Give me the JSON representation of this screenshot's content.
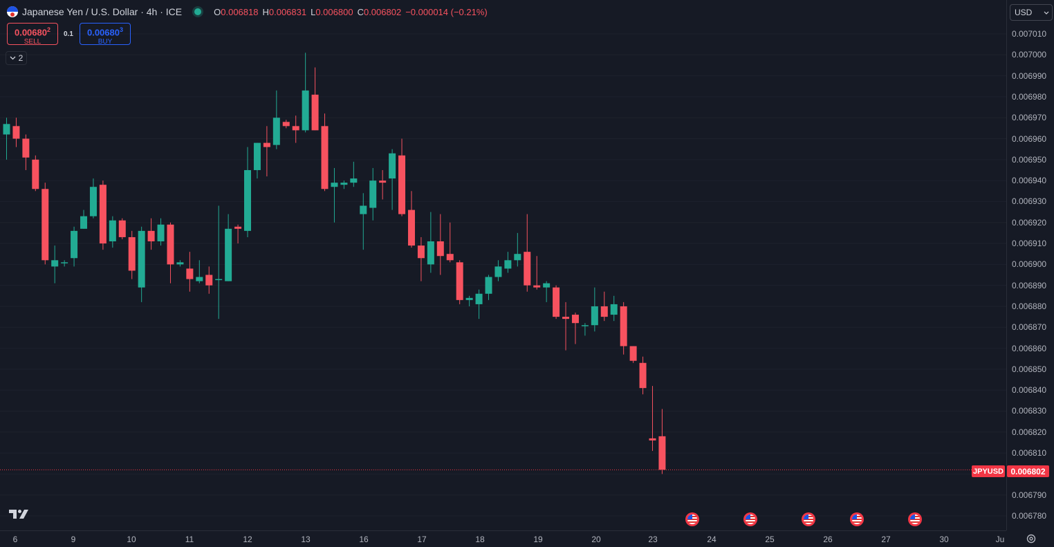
{
  "header": {
    "title": "Japanese Yen / U.S. Dollar · 4h · ICE",
    "ohlc": [
      {
        "key": "O",
        "value": "0.006818"
      },
      {
        "key": "H",
        "value": "0.006831"
      },
      {
        "key": "L",
        "value": "0.006800"
      },
      {
        "key": "C",
        "value": "0.006802"
      },
      {
        "key": "",
        "value": "−0.000014 (−0.21%)"
      }
    ]
  },
  "trade": {
    "sell_price": "0.00680",
    "sell_price_sup": "2",
    "sell_label": "SELL",
    "spread": "0.1",
    "buy_price": "0.00680",
    "buy_price_sup": "3",
    "buy_label": "BUY"
  },
  "indicators_toggle": {
    "count": "2"
  },
  "currency": {
    "selected": "USD"
  },
  "last_price": {
    "symbol": "JPYUSD",
    "value": "0.006802"
  },
  "icons": {
    "symbol_flag": "japan-us-flag-icon",
    "live_status": "market-open-dot-icon",
    "chevron": "chevron-down-icon",
    "logo": "tradingview-logo-icon",
    "events": "us-economic-event-icon",
    "settings": "settings-gear-icon"
  },
  "colors": {
    "up": "#22ab94",
    "down": "#f7525f",
    "background": "#161a25",
    "grid": "#1e222d"
  },
  "chart_data": {
    "type": "candlestick",
    "title": "Japanese Yen / U.S. Dollar · 4h · ICE",
    "ylim": [
      0.006775,
      0.007015
    ],
    "y_ticks": [
      "0.006780",
      "0.006790",
      "0.006800",
      "0.006810",
      "0.006820",
      "0.006830",
      "0.006840",
      "0.006850",
      "0.006860",
      "0.006870",
      "0.006880",
      "0.006890",
      "0.006900",
      "0.006910",
      "0.006920",
      "0.006930",
      "0.006940",
      "0.006950",
      "0.006960",
      "0.006970",
      "0.006980",
      "0.006990",
      "0.007000",
      "0.007010"
    ],
    "x_ticks": [
      "6",
      "9",
      "10",
      "11",
      "12",
      "13",
      "16",
      "17",
      "18",
      "19",
      "20",
      "23",
      "24",
      "25",
      "26",
      "27",
      "30",
      "Ju"
    ],
    "event_dates": [
      "24",
      "25",
      "26",
      "27",
      "30"
    ],
    "candles": [
      {
        "o": 0.006962,
        "h": 0.00697,
        "l": 0.00695,
        "c": 0.006967
      },
      {
        "o": 0.006966,
        "h": 0.00697,
        "l": 0.006956,
        "c": 0.00696
      },
      {
        "o": 0.00696,
        "h": 0.006962,
        "l": 0.006945,
        "c": 0.006951
      },
      {
        "o": 0.00695,
        "h": 0.006952,
        "l": 0.006935,
        "c": 0.006936
      },
      {
        "o": 0.006936,
        "h": 0.006939,
        "l": 0.0069,
        "c": 0.006902
      },
      {
        "o": 0.006899,
        "h": 0.006909,
        "l": 0.006891,
        "c": 0.006902
      },
      {
        "o": 0.006901,
        "h": 0.006902,
        "l": 0.006899,
        "c": 0.006901
      },
      {
        "o": 0.006903,
        "h": 0.006918,
        "l": 0.006899,
        "c": 0.006916
      },
      {
        "o": 0.006917,
        "h": 0.006926,
        "l": 0.006917,
        "c": 0.006923
      },
      {
        "o": 0.006923,
        "h": 0.006941,
        "l": 0.006922,
        "c": 0.006937
      },
      {
        "o": 0.006938,
        "h": 0.00694,
        "l": 0.006907,
        "c": 0.00691
      },
      {
        "o": 0.006911,
        "h": 0.006923,
        "l": 0.006908,
        "c": 0.006921
      },
      {
        "o": 0.006921,
        "h": 0.006922,
        "l": 0.006912,
        "c": 0.006913
      },
      {
        "o": 0.006913,
        "h": 0.006916,
        "l": 0.006893,
        "c": 0.006897
      },
      {
        "o": 0.006889,
        "h": 0.006918,
        "l": 0.006882,
        "c": 0.006916
      },
      {
        "o": 0.006916,
        "h": 0.006922,
        "l": 0.006907,
        "c": 0.006911
      },
      {
        "o": 0.006911,
        "h": 0.006922,
        "l": 0.006909,
        "c": 0.006919
      },
      {
        "o": 0.006919,
        "h": 0.00692,
        "l": 0.006891,
        "c": 0.0069
      },
      {
        "o": 0.0069,
        "h": 0.006902,
        "l": 0.006899,
        "c": 0.006901
      },
      {
        "o": 0.006898,
        "h": 0.006906,
        "l": 0.006887,
        "c": 0.006893
      },
      {
        "o": 0.006892,
        "h": 0.006902,
        "l": 0.006891,
        "c": 0.006894
      },
      {
        "o": 0.006895,
        "h": 0.006899,
        "l": 0.006886,
        "c": 0.00689
      },
      {
        "o": 0.006893,
        "h": 0.006928,
        "l": 0.006874,
        "c": 0.006893
      },
      {
        "o": 0.006892,
        "h": 0.006924,
        "l": 0.006892,
        "c": 0.006917
      },
      {
        "o": 0.006918,
        "h": 0.006919,
        "l": 0.00691,
        "c": 0.006917
      },
      {
        "o": 0.006916,
        "h": 0.006956,
        "l": 0.006913,
        "c": 0.006945
      },
      {
        "o": 0.006945,
        "h": 0.006958,
        "l": 0.006941,
        "c": 0.006958
      },
      {
        "o": 0.006958,
        "h": 0.006966,
        "l": 0.006942,
        "c": 0.006956
      },
      {
        "o": 0.006957,
        "h": 0.006983,
        "l": 0.006955,
        "c": 0.00697
      },
      {
        "o": 0.006968,
        "h": 0.006969,
        "l": 0.006965,
        "c": 0.006966
      },
      {
        "o": 0.006966,
        "h": 0.006971,
        "l": 0.006958,
        "c": 0.006964
      },
      {
        "o": 0.006964,
        "h": 0.007001,
        "l": 0.006963,
        "c": 0.006983
      },
      {
        "o": 0.006981,
        "h": 0.006994,
        "l": 0.006964,
        "c": 0.006964
      },
      {
        "o": 0.006966,
        "h": 0.006972,
        "l": 0.006935,
        "c": 0.006936
      },
      {
        "o": 0.006937,
        "h": 0.006946,
        "l": 0.00692,
        "c": 0.006939
      },
      {
        "o": 0.006938,
        "h": 0.00694,
        "l": 0.006936,
        "c": 0.006939
      },
      {
        "o": 0.006939,
        "h": 0.006949,
        "l": 0.006937,
        "c": 0.006941
      },
      {
        "o": 0.006924,
        "h": 0.006934,
        "l": 0.006907,
        "c": 0.006928
      },
      {
        "o": 0.006927,
        "h": 0.006946,
        "l": 0.006921,
        "c": 0.00694
      },
      {
        "o": 0.00694,
        "h": 0.006945,
        "l": 0.006931,
        "c": 0.006939
      },
      {
        "o": 0.006941,
        "h": 0.006955,
        "l": 0.006926,
        "c": 0.006953
      },
      {
        "o": 0.006952,
        "h": 0.00696,
        "l": 0.006923,
        "c": 0.006924
      },
      {
        "o": 0.006926,
        "h": 0.006935,
        "l": 0.006908,
        "c": 0.006909
      },
      {
        "o": 0.006909,
        "h": 0.006913,
        "l": 0.006892,
        "c": 0.006903
      },
      {
        "o": 0.0069,
        "h": 0.006925,
        "l": 0.006896,
        "c": 0.006911
      },
      {
        "o": 0.006911,
        "h": 0.006924,
        "l": 0.006895,
        "c": 0.006904
      },
      {
        "o": 0.006905,
        "h": 0.00692,
        "l": 0.006901,
        "c": 0.006902
      },
      {
        "o": 0.006901,
        "h": 0.006902,
        "l": 0.006881,
        "c": 0.006883
      },
      {
        "o": 0.006883,
        "h": 0.006885,
        "l": 0.00688,
        "c": 0.006884
      },
      {
        "o": 0.006881,
        "h": 0.006888,
        "l": 0.006874,
        "c": 0.006886
      },
      {
        "o": 0.006886,
        "h": 0.006895,
        "l": 0.006883,
        "c": 0.006894
      },
      {
        "o": 0.006894,
        "h": 0.006902,
        "l": 0.006892,
        "c": 0.006899
      },
      {
        "o": 0.006898,
        "h": 0.006906,
        "l": 0.006896,
        "c": 0.006902
      },
      {
        "o": 0.006902,
        "h": 0.006915,
        "l": 0.006899,
        "c": 0.006905
      },
      {
        "o": 0.006906,
        "h": 0.006924,
        "l": 0.006887,
        "c": 0.00689
      },
      {
        "o": 0.00689,
        "h": 0.006904,
        "l": 0.006888,
        "c": 0.006889
      },
      {
        "o": 0.006889,
        "h": 0.006892,
        "l": 0.006882,
        "c": 0.006891
      },
      {
        "o": 0.006889,
        "h": 0.00689,
        "l": 0.006874,
        "c": 0.006875
      },
      {
        "o": 0.006875,
        "h": 0.006882,
        "l": 0.006859,
        "c": 0.006874
      },
      {
        "o": 0.006876,
        "h": 0.006877,
        "l": 0.006862,
        "c": 0.006872
      },
      {
        "o": 0.006871,
        "h": 0.006872,
        "l": 0.006866,
        "c": 0.006871
      },
      {
        "o": 0.006871,
        "h": 0.006889,
        "l": 0.006868,
        "c": 0.00688
      },
      {
        "o": 0.00688,
        "h": 0.006887,
        "l": 0.006873,
        "c": 0.006875
      },
      {
        "o": 0.006876,
        "h": 0.006885,
        "l": 0.006873,
        "c": 0.006881
      },
      {
        "o": 0.00688,
        "h": 0.006882,
        "l": 0.006857,
        "c": 0.006861
      },
      {
        "o": 0.006861,
        "h": 0.006861,
        "l": 0.006853,
        "c": 0.006854
      },
      {
        "o": 0.006853,
        "h": 0.006856,
        "l": 0.006838,
        "c": 0.006841
      },
      {
        "o": 0.006817,
        "h": 0.006842,
        "l": 0.006811,
        "c": 0.006816
      },
      {
        "o": 0.006818,
        "h": 0.006831,
        "l": 0.0068,
        "c": 0.006802
      }
    ]
  }
}
